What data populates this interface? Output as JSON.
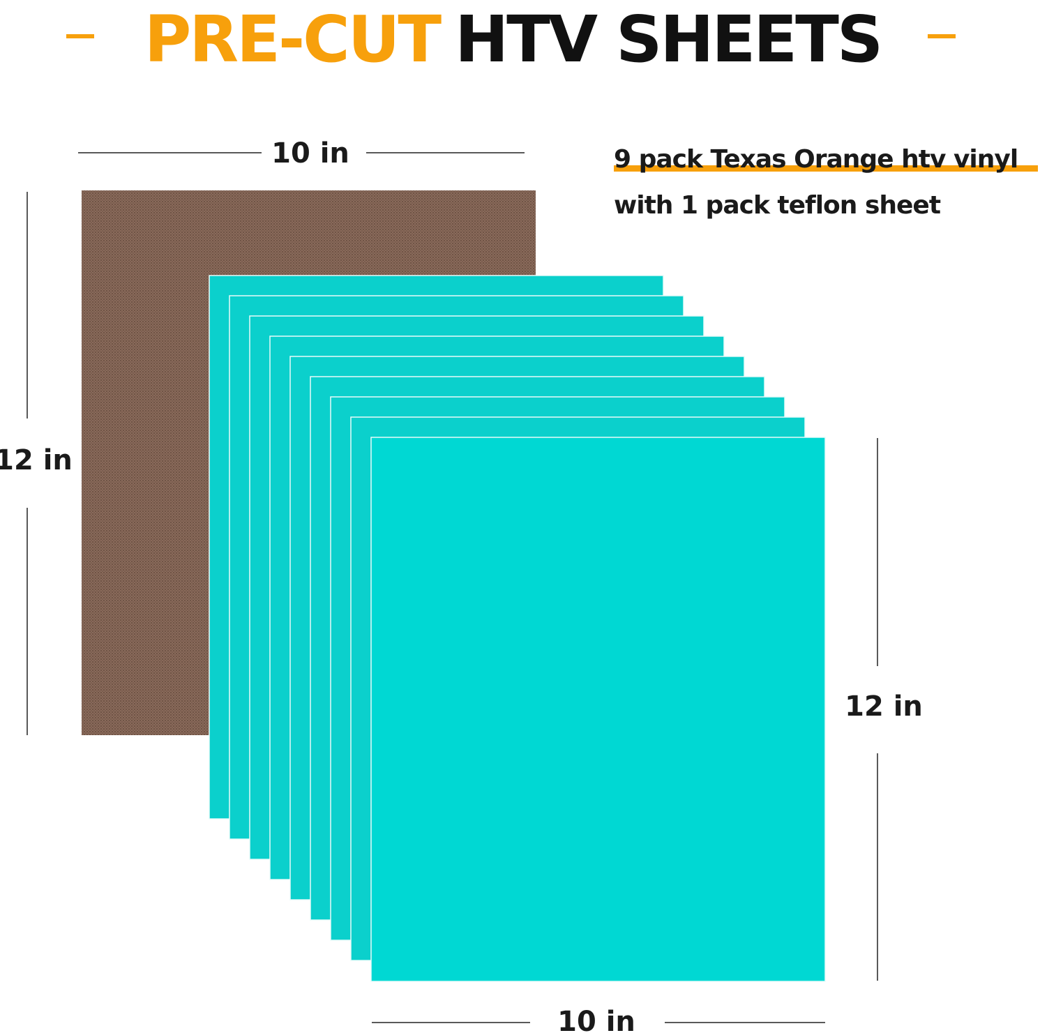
{
  "title": {
    "highlight": "PRE-CUT",
    "rest": "HTV SHEETS"
  },
  "caption": {
    "line1": "9 pack Texas Orange htv vinyl",
    "line2": "with 1 pack teflon sheet"
  },
  "dimensions": {
    "teflon_width": "10 in",
    "teflon_height": "12 in",
    "vinyl_height": "12 in",
    "vinyl_width": "10 in"
  }
}
